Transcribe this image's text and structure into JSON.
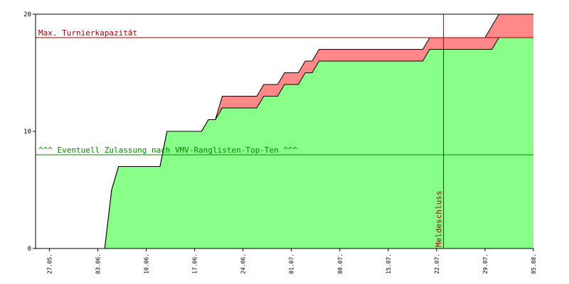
{
  "chart_data": {
    "type": "area",
    "title": "",
    "xlabel": "",
    "ylabel": "",
    "ylim": [
      0,
      20
    ],
    "xlim": [
      "2009-05-25",
      "2009-08-05"
    ],
    "x_tick_labels": [
      "27.05.",
      "03.06.",
      "10.06.",
      "17.06.",
      "24.06.",
      "01.07.",
      "08.07.",
      "15.07.",
      "22.07.",
      "29.07.",
      "05.08."
    ],
    "y_tick_labels": [
      "0",
      "10",
      "20"
    ],
    "grid": false,
    "series": [
      {
        "color": "#88ff88",
        "points": [
          [
            "2009-05-25",
            0
          ],
          [
            "2009-06-04",
            0
          ],
          [
            "2009-06-05",
            5
          ],
          [
            "2009-06-06",
            7
          ],
          [
            "2009-06-12",
            7
          ],
          [
            "2009-06-13",
            10
          ],
          [
            "2009-06-18",
            10
          ],
          [
            "2009-06-19",
            11
          ],
          [
            "2009-06-20",
            11
          ],
          [
            "2009-06-21",
            12
          ],
          [
            "2009-06-26",
            12
          ],
          [
            "2009-06-27",
            13
          ],
          [
            "2009-06-29",
            13
          ],
          [
            "2009-06-30",
            14
          ],
          [
            "2009-07-02",
            14
          ],
          [
            "2009-07-03",
            15
          ],
          [
            "2009-07-04",
            15
          ],
          [
            "2009-07-05",
            16
          ],
          [
            "2009-07-20",
            16
          ],
          [
            "2009-07-21",
            17
          ],
          [
            "2009-07-30",
            17
          ],
          [
            "2009-07-31",
            18
          ],
          [
            "2009-08-05",
            18
          ]
        ]
      },
      {
        "color": "#ff8888",
        "points": [
          [
            "2009-05-25",
            0
          ],
          [
            "2009-06-04",
            0
          ],
          [
            "2009-06-05",
            5
          ],
          [
            "2009-06-06",
            7
          ],
          [
            "2009-06-12",
            7
          ],
          [
            "2009-06-13",
            10
          ],
          [
            "2009-06-18",
            10
          ],
          [
            "2009-06-19",
            11
          ],
          [
            "2009-06-20",
            11
          ],
          [
            "2009-06-21",
            13
          ],
          [
            "2009-06-26",
            13
          ],
          [
            "2009-06-27",
            14
          ],
          [
            "2009-06-29",
            14
          ],
          [
            "2009-06-30",
            15
          ],
          [
            "2009-07-02",
            15
          ],
          [
            "2009-07-03",
            16
          ],
          [
            "2009-07-04",
            16
          ],
          [
            "2009-07-05",
            17
          ],
          [
            "2009-07-20",
            17
          ],
          [
            "2009-07-21",
            18
          ],
          [
            "2009-07-29",
            18
          ],
          [
            "2009-07-31",
            20
          ],
          [
            "2009-08-05",
            20
          ]
        ]
      }
    ],
    "hlines": [
      {
        "y": 18,
        "label": "Max. Turnierkapazität",
        "color": "#990000"
      },
      {
        "y": 8,
        "label": "^^^ Eventuell Zulassung nach VMV-Ranglisten-Top-Ten ^^^",
        "color": "#008800"
      }
    ],
    "vlines": [
      {
        "x": "2009-07-23",
        "label": "Meldeschluss",
        "color": "#990000"
      }
    ]
  }
}
